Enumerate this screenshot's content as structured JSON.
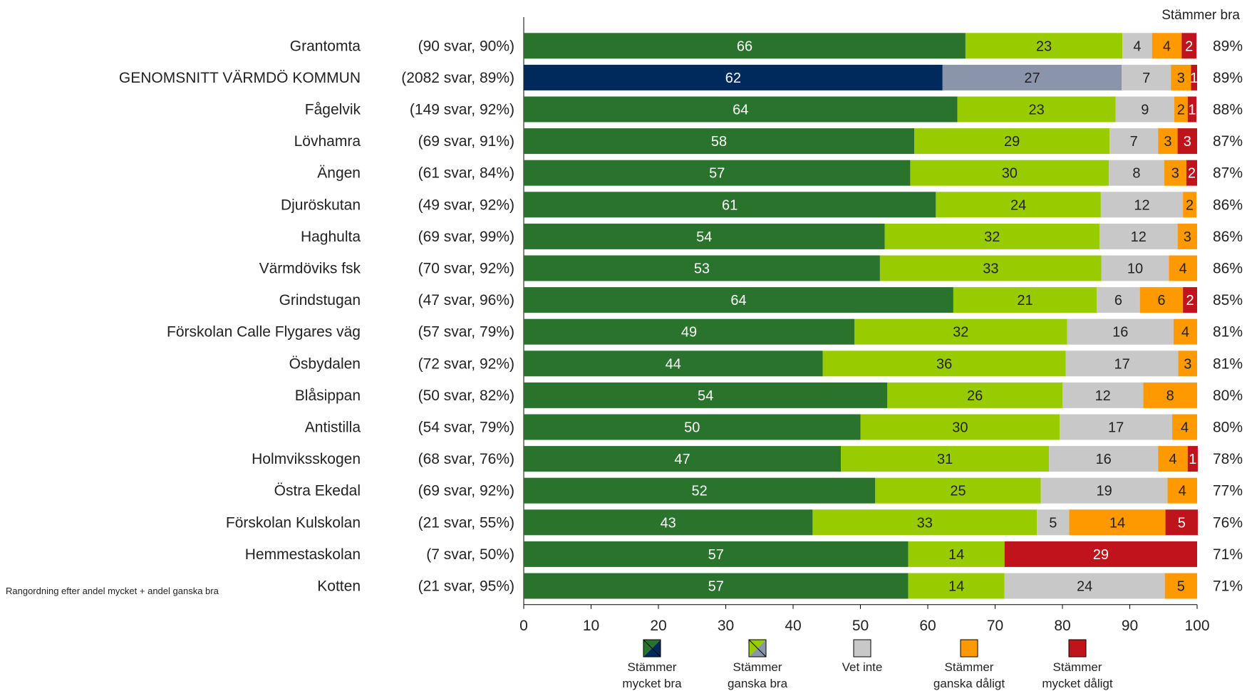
{
  "chart_data": {
    "type": "bar",
    "orientation": "horizontal",
    "stacked": true,
    "xlim": [
      0,
      100
    ],
    "xticks": [
      0,
      10,
      20,
      30,
      40,
      50,
      60,
      70,
      80,
      90,
      100
    ],
    "right_header": "Stämmer bra",
    "footnote": "Rangordning efter andel mycket + andel ganska bra",
    "categories": [
      "Grantomta",
      "GENOMSNITT VÄRMDÖ KOMMUN",
      "Fågelvik",
      "Lövhamra",
      "Ängen",
      "Djuröskutan",
      "Haghulta",
      "Värmdöviks fsk",
      "Grindstugan",
      "Förskolan Calle Flygares väg",
      "Ösbydalen",
      "Blåsippan",
      "Antistilla",
      "Holmviksskogen",
      "Östra Ekedal",
      "Förskolan Kulskolan",
      "Hemmestaskolan",
      "Kotten"
    ],
    "responses": [
      "(90 svar, 90%)",
      "(2082 svar, 89%)",
      "(149 svar, 92%)",
      "(69 svar, 91%)",
      "(61 svar, 84%)",
      "(49 svar, 92%)",
      "(69 svar, 99%)",
      "(70 svar, 92%)",
      "(47 svar, 96%)",
      "(57 svar, 79%)",
      "(72 svar, 92%)",
      "(50 svar, 82%)",
      "(54 svar, 79%)",
      "(68 svar, 76%)",
      "(69 svar, 92%)",
      "(21 svar, 55%)",
      "(7 svar, 50%)",
      "(21 svar, 95%)"
    ],
    "stammer_bra": [
      "89%",
      "89%",
      "88%",
      "87%",
      "87%",
      "86%",
      "86%",
      "86%",
      "85%",
      "81%",
      "81%",
      "80%",
      "80%",
      "78%",
      "77%",
      "76%",
      "71%",
      "71%"
    ],
    "highlight_index": 1,
    "highlight_colors": {
      "mycket_bra": "#002a5c",
      "ganska_bra": "#8a94ab"
    },
    "series": [
      {
        "name": "Stämmer mycket bra",
        "color": "#2a732c",
        "text_color": "#ffffff",
        "values": [
          65.6,
          62.2,
          64.4,
          58.0,
          57.4,
          61.2,
          53.6,
          52.9,
          63.8,
          49.1,
          44.4,
          54.0,
          50.0,
          47.1,
          52.2,
          42.9,
          57.1,
          57.1
        ],
        "labels": [
          "66",
          "62",
          "64",
          "58",
          "57",
          "61",
          "54",
          "53",
          "64",
          "49",
          "44",
          "54",
          "50",
          "47",
          "52",
          "43",
          "57",
          "57"
        ]
      },
      {
        "name": "Stämmer ganska bra",
        "color": "#99cc00",
        "text_color": "#222222",
        "values": [
          23.3,
          26.6,
          23.5,
          29.0,
          29.5,
          24.5,
          31.9,
          32.9,
          21.3,
          31.6,
          36.1,
          26.0,
          29.6,
          30.9,
          24.6,
          33.3,
          14.3,
          14.3
        ],
        "labels": [
          "23",
          "27",
          "23",
          "29",
          "30",
          "24",
          "32",
          "33",
          "21",
          "32",
          "36",
          "26",
          "30",
          "31",
          "25",
          "33",
          "14",
          "14"
        ]
      },
      {
        "name": "Vet inte",
        "color": "#c8c8c8",
        "text_color": "#222222",
        "values": [
          4.4,
          7.3,
          8.7,
          7.2,
          8.2,
          12.2,
          11.6,
          10.0,
          6.4,
          15.8,
          16.7,
          12.0,
          16.7,
          16.2,
          18.8,
          4.8,
          0,
          23.8
        ],
        "labels": [
          "4",
          "7",
          "9",
          "7",
          "8",
          "12",
          "12",
          "10",
          "6",
          "16",
          "17",
          "12",
          "17",
          "16",
          "19",
          "5",
          "",
          "24"
        ]
      },
      {
        "name": "Stämmer ganska dåligt",
        "color": "#ff9900",
        "text_color": "#222222",
        "values": [
          4.4,
          3.0,
          2.0,
          2.9,
          3.3,
          2.0,
          2.9,
          4.2,
          6.4,
          3.5,
          2.8,
          8.0,
          3.7,
          4.4,
          4.4,
          14.3,
          0,
          4.8
        ],
        "labels": [
          "4",
          "3",
          "2",
          "3",
          "3",
          "2",
          "3",
          "4",
          "6",
          "4",
          "3",
          "8",
          "4",
          "4",
          "4",
          "14",
          "",
          "5"
        ]
      },
      {
        "name": "Stämmer mycket dåligt",
        "color": "#c0141c",
        "text_color": "#ffffff",
        "values": [
          2.2,
          0.9,
          1.3,
          2.9,
          1.6,
          0,
          0,
          0,
          2.1,
          0,
          0,
          0,
          0,
          1.5,
          0,
          4.8,
          28.6,
          0
        ],
        "labels": [
          "2",
          "1",
          "1",
          "3",
          "2",
          "",
          "",
          "",
          "2",
          "",
          "",
          "",
          "",
          "1",
          "",
          "5",
          "29",
          ""
        ]
      }
    ],
    "legend": [
      {
        "key": "mycket_bra",
        "line1": "Stämmer",
        "line2": "mycket bra",
        "color": "#2a732c",
        "alt_color": "#002a5c"
      },
      {
        "key": "ganska_bra",
        "line1": "Stämmer",
        "line2": "ganska bra",
        "color": "#99cc00",
        "alt_color": "#8a94ab"
      },
      {
        "key": "vet_inte",
        "line1": "Vet inte",
        "line2": "",
        "color": "#c8c8c8"
      },
      {
        "key": "ganska_daligt",
        "line1": "Stämmer",
        "line2": "ganska dåligt",
        "color": "#ff9900"
      },
      {
        "key": "mycket_daligt",
        "line1": "Stämmer",
        "line2": "mycket dåligt",
        "color": "#c0141c"
      }
    ]
  }
}
